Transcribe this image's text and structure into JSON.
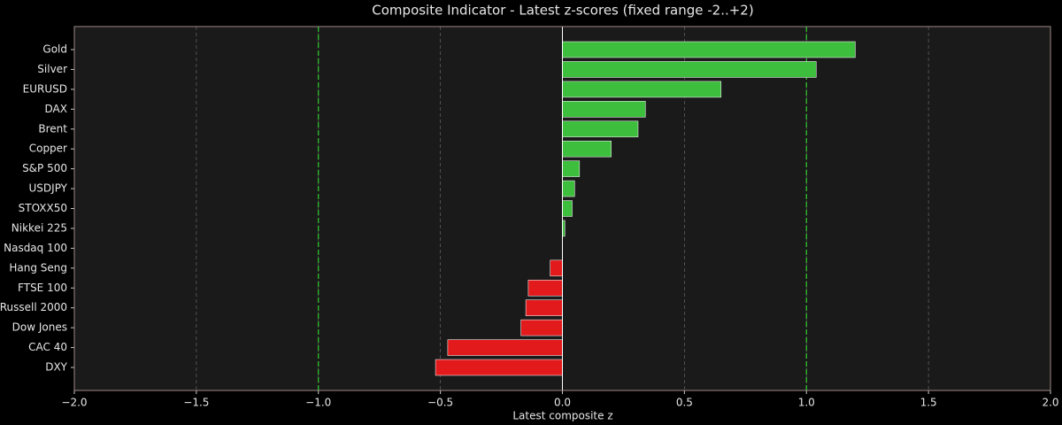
{
  "chart_data": {
    "type": "barh",
    "title": "Composite Indicator - Latest z-scores (fixed range -2..+2)",
    "x_label": "Latest composite z",
    "categories": [
      "Gold",
      "Silver",
      "EURUSD",
      "DAX",
      "Brent",
      "Copper",
      "S&P 500",
      "USDJPY",
      "STOXX50",
      "Nikkei 225",
      "Nasdaq 100",
      "Hang Seng",
      "FTSE 100",
      "Russell 2000",
      "Dow Jones",
      "CAC 40",
      "DXY"
    ],
    "values": [
      1.2,
      1.04,
      0.65,
      0.34,
      0.31,
      0.2,
      0.07,
      0.05,
      0.04,
      0.01,
      0.0,
      -0.05,
      -0.14,
      -0.15,
      -0.17,
      -0.47,
      -0.52
    ],
    "color_positive": "#3dbf3d",
    "color_negative": "#e31a1c",
    "xlim": [
      -2,
      2
    ],
    "xticks": [
      {
        "value": -2,
        "label": "−2.0"
      },
      {
        "value": -1.5,
        "label": "−1.5"
      },
      {
        "value": -1,
        "label": "−1.0"
      },
      {
        "value": -0.5,
        "label": "−0.5"
      },
      {
        "value": 0,
        "label": "0.0"
      },
      0.5,
      {
        "value": 1,
        "label": "1.0"
      },
      1.5,
      {
        "value": 2,
        "label": "2.0"
      }
    ],
    "grid": true,
    "thresholds": [
      -1,
      1
    ],
    "threshold_color": "#2ecc2e"
  }
}
